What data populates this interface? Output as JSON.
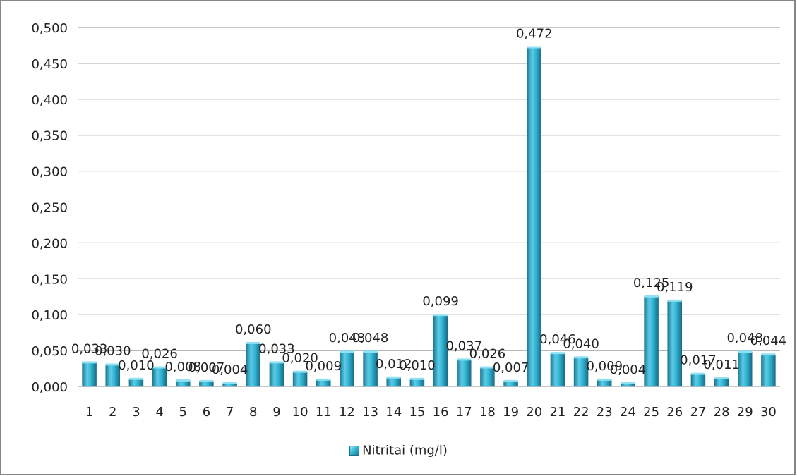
{
  "chart_data": {
    "type": "bar",
    "categories": [
      "1",
      "2",
      "3",
      "4",
      "5",
      "6",
      "7",
      "8",
      "9",
      "10",
      "11",
      "12",
      "13",
      "14",
      "15",
      "16",
      "17",
      "18",
      "19",
      "20",
      "21",
      "22",
      "23",
      "24",
      "25",
      "26",
      "27",
      "28",
      "29",
      "30"
    ],
    "series": [
      {
        "name": "Nitritai (mg/l)",
        "values": [
          0.033,
          0.03,
          0.01,
          0.026,
          0.008,
          0.007,
          0.004,
          0.06,
          0.033,
          0.02,
          0.009,
          0.048,
          0.048,
          0.012,
          0.01,
          0.099,
          0.037,
          0.026,
          0.007,
          0.472,
          0.046,
          0.04,
          0.009,
          0.004,
          0.125,
          0.119,
          0.017,
          0.011,
          0.048,
          0.044
        ],
        "labels": [
          "0,033",
          "0,030",
          "0,010",
          "0,026",
          "0,008",
          "0,007",
          "0,004",
          "0,060",
          "0,033",
          "0,020",
          "0,009",
          "0,048",
          "0,048",
          "0,012",
          "0,010",
          "0,099",
          "0,037",
          "0,026",
          "0,007",
          "0,472",
          "0,046",
          "0,040",
          "0,009",
          "0,004",
          "0,125",
          "0,119",
          "0,017",
          "0,011",
          "0,048",
          "0,044"
        ],
        "color": "#31b4d4"
      }
    ],
    "ylim": [
      0,
      0.5
    ],
    "yticks": [
      "0,000",
      "0,050",
      "0,100",
      "0,150",
      "0,200",
      "0,250",
      "0,300",
      "0,350",
      "0,400",
      "0,450",
      "0,500"
    ],
    "grid": true,
    "legend_position": "bottom",
    "title": "",
    "xlabel": "",
    "ylabel": ""
  },
  "legend": {
    "label": "Nitritai (mg/l)"
  },
  "colors": {
    "bar_light": "#a5e8f6",
    "bar_mid": "#33b6d6",
    "bar_dark": "#1b7d96",
    "grid": "#8c8c8c"
  }
}
